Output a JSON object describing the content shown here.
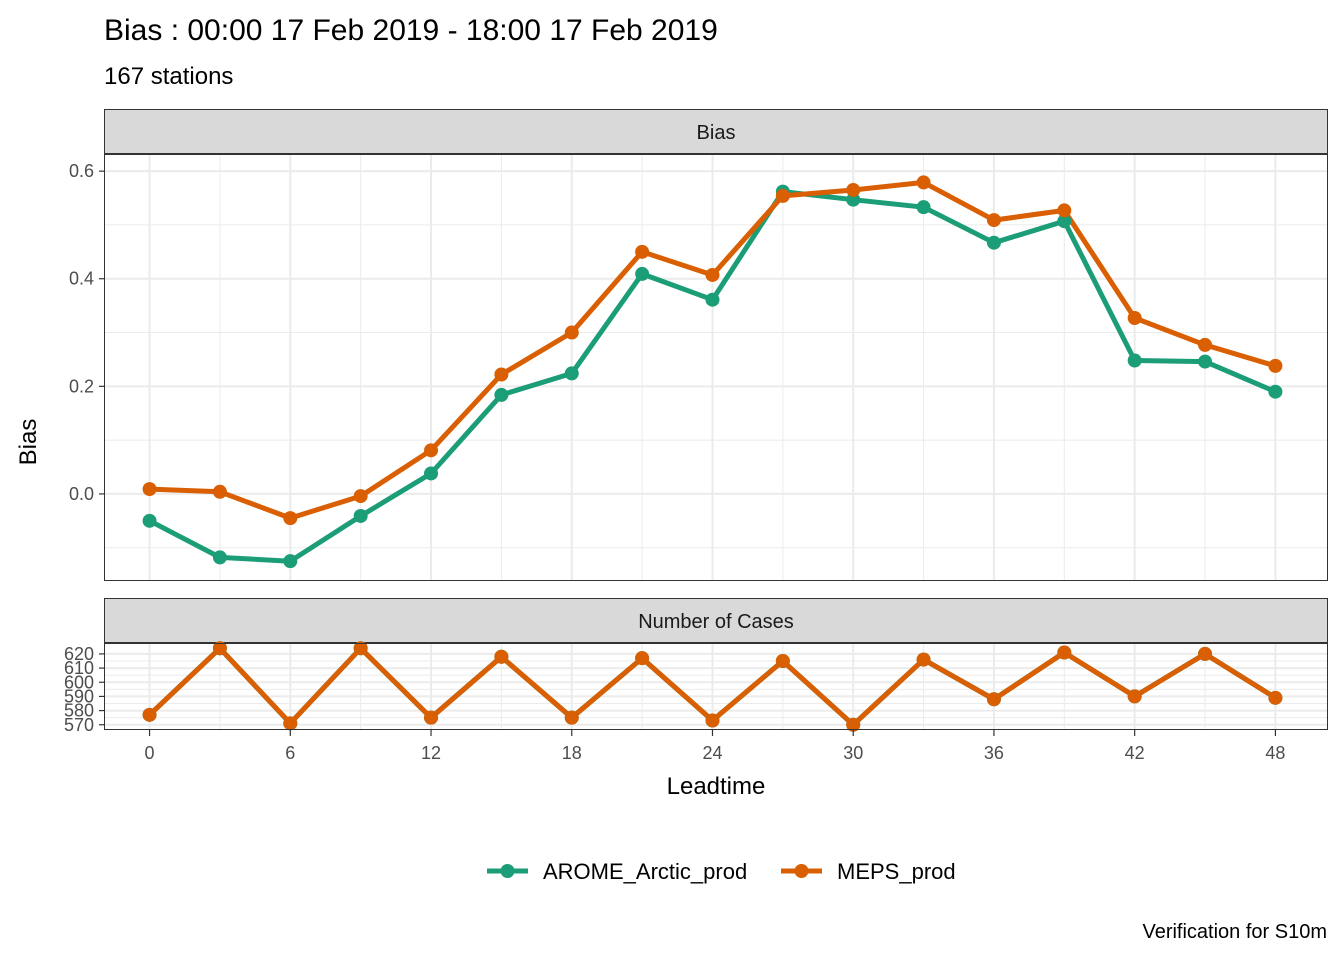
{
  "title": "Bias : 00:00 17 Feb 2019 - 18:00 17 Feb 2019",
  "subtitle": "167 stations",
  "caption": "Verification for S10m",
  "colors": {
    "AROME_Arctic_prod": "#1b9e77",
    "MEPS_prod": "#d95f02",
    "strip_fill": "#d9d9d9",
    "grid": "#ebebeb"
  },
  "chart_data": [
    {
      "type": "line",
      "panel_label": "Bias",
      "ylabel": "Bias",
      "ylim": [
        -0.16,
        0.63
      ],
      "yticks": [
        0.0,
        0.2,
        0.4,
        0.6
      ],
      "ytick_labels": [
        "0.0",
        "0.2",
        "0.4",
        "0.6"
      ],
      "x": [
        0,
        3,
        6,
        9,
        12,
        15,
        18,
        21,
        24,
        27,
        30,
        33,
        36,
        39,
        42,
        45,
        48
      ],
      "series": [
        {
          "name": "AROME_Arctic_prod",
          "values": [
            -0.05,
            -0.118,
            -0.125,
            -0.041,
            0.038,
            0.184,
            0.224,
            0.409,
            0.361,
            0.562,
            0.547,
            0.533,
            0.467,
            0.507,
            0.248,
            0.246,
            0.19
          ]
        },
        {
          "name": "MEPS_prod",
          "values": [
            0.009,
            0.004,
            -0.045,
            -0.004,
            0.081,
            0.222,
            0.3,
            0.45,
            0.407,
            0.554,
            0.565,
            0.579,
            0.509,
            0.527,
            0.327,
            0.277,
            0.238
          ]
        }
      ]
    },
    {
      "type": "line",
      "panel_label": "Number of Cases",
      "ylim": [
        567,
        627
      ],
      "yticks": [
        570,
        580,
        590,
        600,
        610,
        620
      ],
      "ytick_labels": [
        "570",
        "580",
        "590",
        "600",
        "610",
        "620"
      ],
      "x": [
        0,
        3,
        6,
        9,
        12,
        15,
        18,
        21,
        24,
        27,
        30,
        33,
        36,
        39,
        42,
        45,
        48
      ],
      "series": [
        {
          "name": "AROME_Arctic_prod",
          "values": [
            577,
            624,
            571,
            624,
            575,
            618,
            575,
            617,
            573,
            615,
            570,
            616,
            588,
            621,
            590,
            620,
            589
          ]
        },
        {
          "name": "MEPS_prod",
          "values": [
            577,
            624,
            571,
            624,
            575,
            618,
            575,
            617,
            573,
            615,
            570,
            616,
            588,
            621,
            590,
            620,
            589
          ]
        }
      ]
    }
  ],
  "xaxis": {
    "label": "Leadtime",
    "ticks": [
      0,
      6,
      12,
      18,
      24,
      30,
      36,
      42,
      48
    ],
    "tick_labels": [
      "0",
      "6",
      "12",
      "18",
      "24",
      "30",
      "36",
      "42",
      "48"
    ],
    "xlim": [
      -1.9,
      50.2
    ]
  },
  "legend": {
    "placement": "bottom",
    "items": [
      "AROME_Arctic_prod",
      "MEPS_prod"
    ]
  }
}
